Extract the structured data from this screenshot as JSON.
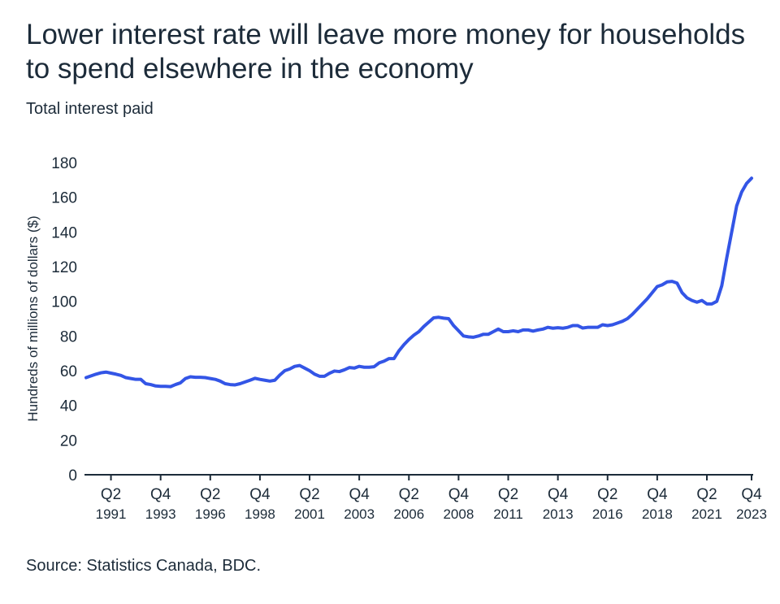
{
  "title": "Lower interest rate will leave more money for households to spend elsewhere in the economy",
  "subtitle": "Total interest paid",
  "source": "Source: Statistics Canada, BDC.",
  "colors": {
    "line": "#3355e6",
    "text": "#1c2b39",
    "axis": "#1c2b39"
  },
  "chart_data": {
    "type": "line",
    "title": "Lower interest rate will leave more money for households to spend elsewhere in the economy",
    "subtitle": "Total interest paid",
    "xlabel": "",
    "ylabel": "Hundreds of millions of dollars ($)",
    "ylim": [
      0,
      180
    ],
    "yticks": [
      0,
      20,
      40,
      60,
      80,
      100,
      120,
      140,
      160,
      180
    ],
    "grid": false,
    "legend": "none",
    "xticks": [
      {
        "q": "Q2",
        "year": "1991"
      },
      {
        "q": "Q4",
        "year": "1993"
      },
      {
        "q": "Q2",
        "year": "1996"
      },
      {
        "q": "Q4",
        "year": "1998"
      },
      {
        "q": "Q2",
        "year": "2001"
      },
      {
        "q": "Q4",
        "year": "2003"
      },
      {
        "q": "Q2",
        "year": "2006"
      },
      {
        "q": "Q4",
        "year": "2008"
      },
      {
        "q": "Q2",
        "year": "2011"
      },
      {
        "q": "Q4",
        "year": "2013"
      },
      {
        "q": "Q2",
        "year": "2016"
      },
      {
        "q": "Q4",
        "year": "2018"
      },
      {
        "q": "Q2",
        "year": "2021"
      },
      {
        "q": "Q4",
        "year": "2023"
      }
    ],
    "series": [
      {
        "start": "1990 Q1",
        "frequency": "quarterly",
        "values": [
          56,
          57,
          58,
          58.8,
          59.2,
          58.6,
          58,
          57.3,
          56,
          55.5,
          55,
          55,
          52.5,
          52,
          51.2,
          51,
          51,
          50.8,
          52,
          53,
          55.5,
          56.5,
          56.2,
          56.2,
          56,
          55.5,
          55,
          54,
          52.5,
          52,
          51.8,
          52.5,
          53.5,
          54.5,
          55.6,
          55,
          54.5,
          54,
          54.5,
          57.5,
          60,
          61,
          62.5,
          63,
          61.5,
          60,
          58,
          56.8,
          56.8,
          58.5,
          59.8,
          59.5,
          60.5,
          61.8,
          61.5,
          62.5,
          62,
          62,
          62.3,
          64.5,
          65.5,
          67,
          67,
          71.5,
          75,
          78,
          80.5,
          82.5,
          85.5,
          88,
          90.5,
          90.8,
          90.3,
          90,
          86,
          83,
          80,
          79.5,
          79.3,
          80,
          81,
          81,
          82.5,
          84,
          82.5,
          82.5,
          83,
          82.5,
          83.5,
          83.5,
          82.8,
          83.5,
          84,
          85,
          84.5,
          84.8,
          84.5,
          85,
          86,
          86,
          84.6,
          85,
          85,
          85,
          86.5,
          86,
          86.5,
          87.5,
          88.5,
          90,
          92.5,
          95.5,
          98.5,
          101.5,
          105,
          108.5,
          109.5,
          111.2,
          111.5,
          110.5,
          105,
          102,
          100.5,
          99.5,
          100.5,
          98.5,
          98.5,
          100,
          109,
          125,
          140,
          155,
          163,
          168,
          171
        ]
      }
    ]
  }
}
